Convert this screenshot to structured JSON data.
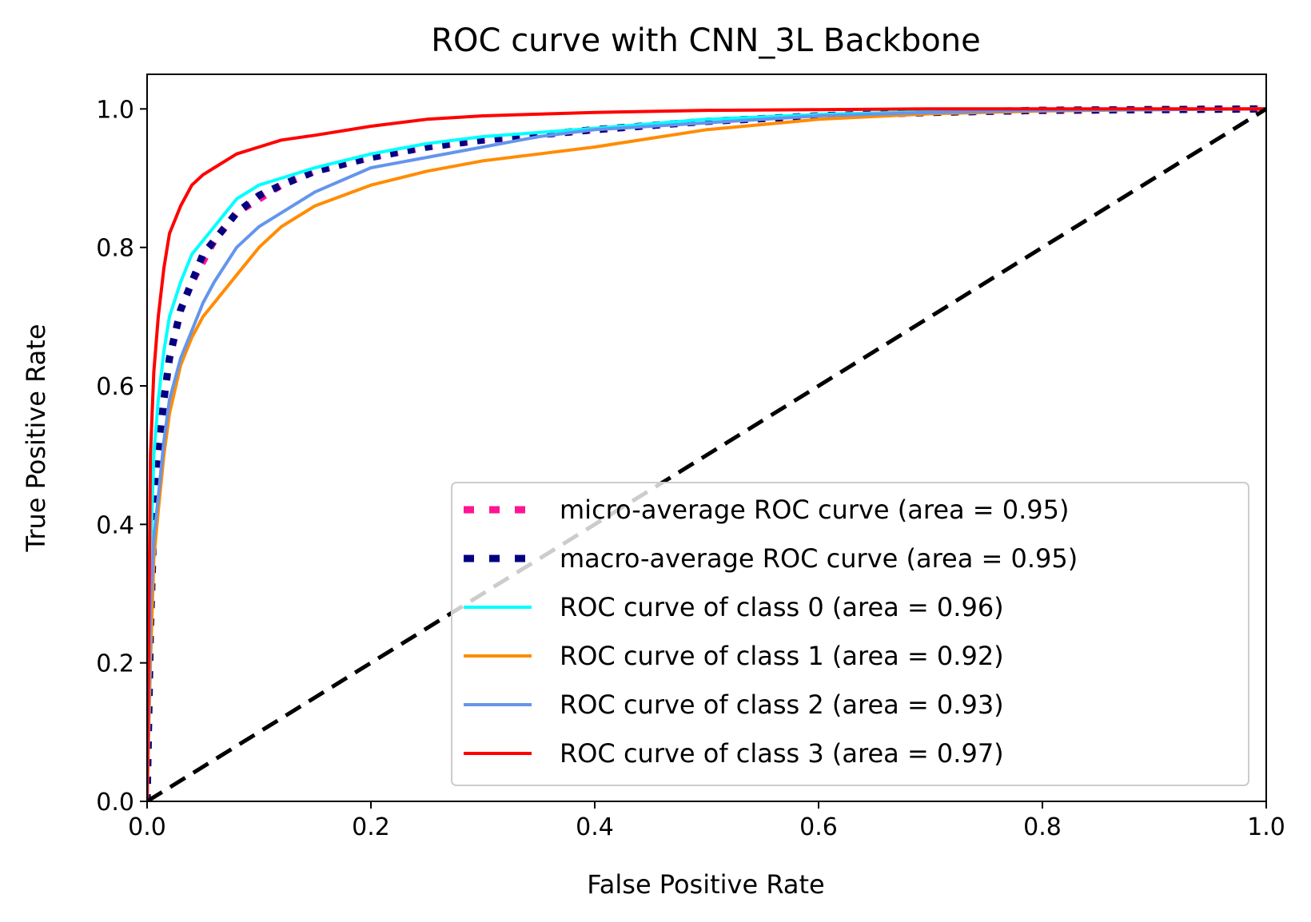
{
  "chart_data": {
    "type": "line",
    "title": "ROC curve with CNN_3L Backbone",
    "xlabel": "False Positive Rate",
    "ylabel": "True Positive Rate",
    "xlim": [
      0.0,
      1.0
    ],
    "ylim": [
      0.0,
      1.05
    ],
    "xticks": [
      "0.0",
      "0.2",
      "0.4",
      "0.6",
      "0.8",
      "1.0"
    ],
    "yticks": [
      "0.0",
      "0.2",
      "0.4",
      "0.6",
      "0.8",
      "1.0"
    ],
    "grid": false,
    "legend_position": "lower-right",
    "series": [
      {
        "name": "micro-average ROC curve (area = 0.95)",
        "color": "#ff1493",
        "style": "dotted",
        "x": [
          0.0,
          0.003,
          0.006,
          0.01,
          0.015,
          0.02,
          0.03,
          0.04,
          0.05,
          0.06,
          0.08,
          0.1,
          0.12,
          0.15,
          0.2,
          0.25,
          0.3,
          0.4,
          0.5,
          0.6,
          0.7,
          0.8,
          0.9,
          1.0
        ],
        "y": [
          0.0,
          0.3,
          0.42,
          0.5,
          0.58,
          0.64,
          0.71,
          0.75,
          0.78,
          0.81,
          0.85,
          0.87,
          0.89,
          0.91,
          0.93,
          0.945,
          0.955,
          0.97,
          0.982,
          0.99,
          0.995,
          0.998,
          0.999,
          1.0
        ]
      },
      {
        "name": "macro-average ROC curve (area = 0.95)",
        "color": "#000080",
        "style": "dotted",
        "x": [
          0.0,
          0.003,
          0.006,
          0.01,
          0.015,
          0.02,
          0.03,
          0.04,
          0.05,
          0.06,
          0.08,
          0.1,
          0.12,
          0.15,
          0.2,
          0.25,
          0.3,
          0.4,
          0.5,
          0.6,
          0.7,
          0.8,
          0.9,
          1.0
        ],
        "y": [
          0.0,
          0.25,
          0.4,
          0.5,
          0.58,
          0.64,
          0.71,
          0.75,
          0.79,
          0.81,
          0.85,
          0.875,
          0.89,
          0.91,
          0.93,
          0.945,
          0.955,
          0.97,
          0.982,
          0.99,
          0.995,
          0.998,
          0.999,
          1.0
        ]
      },
      {
        "name": "ROC curve of class 0 (area = 0.96)",
        "color": "#00ffff",
        "style": "solid",
        "x": [
          0.0,
          0.003,
          0.006,
          0.01,
          0.015,
          0.02,
          0.03,
          0.04,
          0.05,
          0.06,
          0.08,
          0.1,
          0.12,
          0.15,
          0.2,
          0.25,
          0.3,
          0.4,
          0.5,
          0.6,
          0.7,
          0.8,
          0.9,
          1.0
        ],
        "y": [
          0.0,
          0.35,
          0.5,
          0.58,
          0.65,
          0.7,
          0.75,
          0.79,
          0.81,
          0.83,
          0.87,
          0.89,
          0.9,
          0.915,
          0.935,
          0.95,
          0.96,
          0.972,
          0.985,
          0.992,
          0.996,
          0.998,
          0.999,
          1.0
        ]
      },
      {
        "name": "ROC curve of class 1 (area = 0.92)",
        "color": "#ff8c00",
        "style": "solid",
        "x": [
          0.0,
          0.003,
          0.006,
          0.01,
          0.015,
          0.02,
          0.03,
          0.04,
          0.05,
          0.06,
          0.08,
          0.1,
          0.12,
          0.15,
          0.2,
          0.25,
          0.3,
          0.35,
          0.4,
          0.5,
          0.6,
          0.7,
          0.8,
          0.9,
          1.0
        ],
        "y": [
          0.0,
          0.2,
          0.35,
          0.42,
          0.5,
          0.56,
          0.63,
          0.67,
          0.7,
          0.72,
          0.76,
          0.8,
          0.83,
          0.86,
          0.89,
          0.91,
          0.925,
          0.935,
          0.945,
          0.97,
          0.985,
          0.993,
          0.997,
          0.999,
          1.0
        ]
      },
      {
        "name": "ROC curve of class 2 (area = 0.93)",
        "color": "#6495ed",
        "style": "solid",
        "x": [
          0.0,
          0.003,
          0.006,
          0.01,
          0.015,
          0.02,
          0.03,
          0.04,
          0.05,
          0.06,
          0.08,
          0.1,
          0.12,
          0.15,
          0.2,
          0.25,
          0.3,
          0.35,
          0.4,
          0.5,
          0.6,
          0.7,
          0.8,
          0.9,
          1.0
        ],
        "y": [
          0.0,
          0.28,
          0.38,
          0.44,
          0.52,
          0.58,
          0.64,
          0.68,
          0.72,
          0.75,
          0.8,
          0.83,
          0.85,
          0.88,
          0.915,
          0.93,
          0.945,
          0.96,
          0.97,
          0.98,
          0.99,
          0.995,
          0.998,
          0.999,
          1.0
        ]
      },
      {
        "name": "ROC curve of class 3 (area = 0.97)",
        "color": "#ff0000",
        "style": "solid",
        "x": [
          0.0,
          0.003,
          0.006,
          0.01,
          0.015,
          0.02,
          0.03,
          0.04,
          0.05,
          0.06,
          0.08,
          0.1,
          0.12,
          0.15,
          0.2,
          0.25,
          0.3,
          0.4,
          0.5,
          0.6,
          0.7,
          0.8,
          0.9,
          1.0
        ],
        "y": [
          0.0,
          0.5,
          0.62,
          0.7,
          0.77,
          0.82,
          0.86,
          0.89,
          0.905,
          0.915,
          0.935,
          0.945,
          0.955,
          0.962,
          0.975,
          0.985,
          0.99,
          0.995,
          0.998,
          0.999,
          1.0,
          1.0,
          1.0,
          1.0
        ]
      }
    ],
    "reference_line": {
      "color": "#000000",
      "style": "dashed",
      "x": [
        0.0,
        1.0
      ],
      "y": [
        0.0,
        1.0
      ]
    }
  }
}
